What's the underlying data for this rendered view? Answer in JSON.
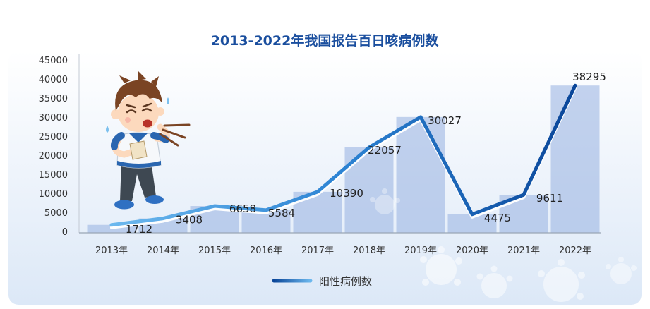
{
  "chart_data": {
    "type": "line",
    "title": "2013-2022年我国报告百日咳病例数",
    "categories": [
      "2013年",
      "2014年",
      "2015年",
      "2016年",
      "2017年",
      "2018年",
      "2019年",
      "2020年",
      "2021年",
      "2022年"
    ],
    "series": [
      {
        "name": "阳性病例数",
        "values": [
          1712,
          3408,
          6658,
          5584,
          10390,
          22057,
          30027,
          4475,
          9611,
          38295
        ]
      }
    ],
    "ylim": [
      0,
      45000
    ],
    "yticks": [
      0,
      5000,
      10000,
      15000,
      20000,
      25000,
      30000,
      35000,
      40000,
      45000
    ],
    "data_labels": true,
    "background_bars": true,
    "grid": false,
    "legend": "bottom-center"
  },
  "colors": {
    "title": "#1a4e9e",
    "line_start": "#6cb8ee",
    "line_mid": "#2c83d3",
    "line_end": "#0a4699",
    "bar_fill": "#9db6e3",
    "panel_top": "#ffffff",
    "panel_bottom": "#dce8f7"
  },
  "illustration": {
    "icon": "coughing-boy"
  }
}
